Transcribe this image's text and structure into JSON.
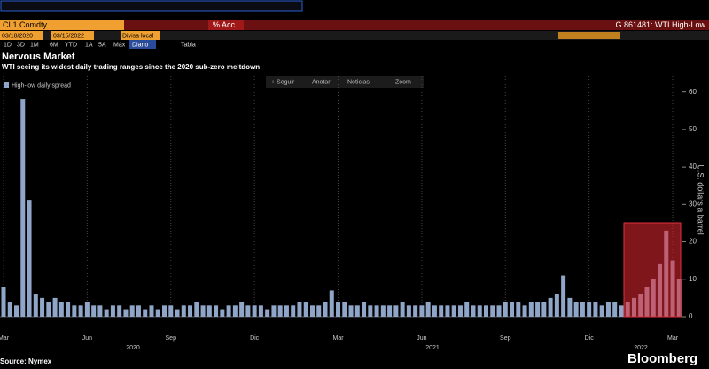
{
  "header": {
    "ticker": "CL1 Comdty",
    "action": "% Acc",
    "chart_id": "G 861481: WTI High-Low",
    "start_date": "03/18/2020",
    "end_date": "03/15/2022",
    "currency": "Divisa local",
    "periods": [
      "1D",
      "3D",
      "1M",
      "6M",
      "YTD",
      "1A",
      "5A",
      "Máx"
    ],
    "frequency": "Diario",
    "table": "Tabla"
  },
  "toolbar": [
    "+ Seguir",
    "Anotar",
    "Noticias",
    "Zoom"
  ],
  "chart_data": {
    "type": "bar",
    "title": "Nervous Market",
    "subtitle": "WTI seeing its widest daily trading ranges since the 2020 sub-zero meltdown",
    "categories": [
      "Mar",
      null,
      null,
      null,
      null,
      null,
      null,
      null,
      null,
      null,
      null,
      null,
      null,
      "Jun",
      null,
      null,
      null,
      null,
      null,
      null,
      null,
      null,
      null,
      null,
      null,
      null,
      "Sep",
      null,
      null,
      null,
      null,
      null,
      null,
      null,
      null,
      null,
      null,
      null,
      null,
      "Dic",
      null,
      null,
      null,
      null,
      null,
      null,
      null,
      null,
      null,
      null,
      null,
      null,
      "Mar",
      null,
      null,
      null,
      null,
      null,
      null,
      null,
      null,
      null,
      null,
      null,
      null,
      "Jun",
      null,
      null,
      null,
      null,
      null,
      null,
      null,
      null,
      null,
      null,
      null,
      null,
      "Sep",
      null,
      null,
      null,
      null,
      null,
      null,
      null,
      null,
      null,
      null,
      null,
      null,
      "Dic",
      null,
      null,
      null,
      null,
      null,
      null,
      null,
      null,
      null,
      null,
      null,
      null,
      "Mar",
      null
    ],
    "years": [
      "2020",
      "2021",
      "2022"
    ],
    "series": [
      {
        "name": "High-low daily spread",
        "color": "#8fa6c8",
        "values": [
          8,
          4,
          3,
          58,
          31,
          6,
          5,
          4,
          5,
          4,
          4,
          3,
          3,
          4,
          3,
          3,
          2,
          3,
          3,
          2,
          3,
          3,
          2,
          3,
          2,
          3,
          3,
          2,
          3,
          3,
          4,
          3,
          3,
          3,
          2,
          3,
          3,
          4,
          3,
          3,
          3,
          2,
          3,
          3,
          3,
          3,
          4,
          4,
          3,
          3,
          4,
          7,
          4,
          4,
          3,
          3,
          4,
          3,
          3,
          3,
          3,
          3,
          4,
          3,
          3,
          3,
          4,
          3,
          3,
          3,
          3,
          3,
          4,
          3,
          3,
          3,
          3,
          3,
          4,
          4,
          4,
          3,
          4,
          4,
          4,
          5,
          6,
          11,
          5,
          4,
          4,
          4,
          4,
          3,
          4,
          4,
          3,
          4,
          5,
          6,
          8,
          10,
          14,
          23,
          15,
          10
        ]
      }
    ],
    "ylim": [
      0,
      63
    ],
    "yticks": [
      0,
      10,
      20,
      30,
      40,
      50,
      60
    ],
    "grid": true,
    "y_label": "U.S. dollars a barrel",
    "source": "Source: Nymex",
    "brand": "Bloomberg"
  }
}
